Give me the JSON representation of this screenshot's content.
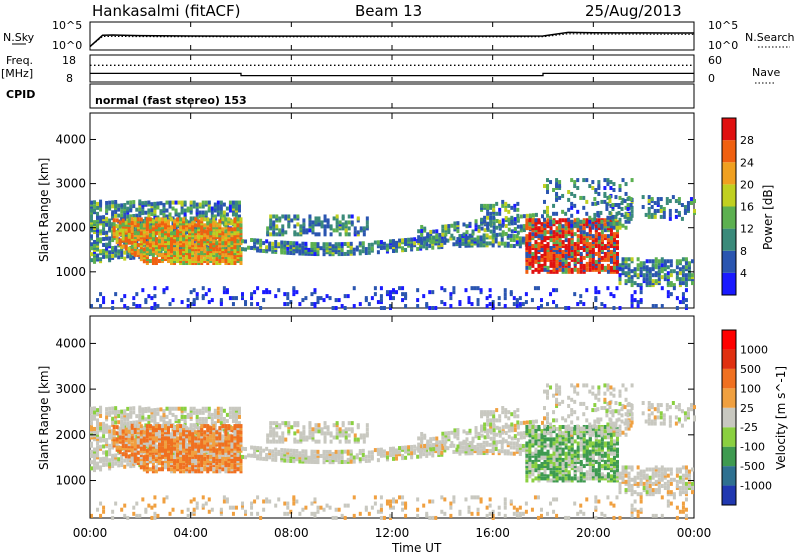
{
  "header": {
    "station": "Hankasalmi (fitACF)",
    "beam": "Beam 13",
    "date": "25/Aug/2013"
  },
  "chart_data": [
    {
      "type": "line",
      "panel": "noise",
      "left_label": "N.Sky",
      "right_label": "N.Search",
      "left_ticks": [
        "10^5",
        "10^0"
      ],
      "right_ticks": [
        "10^5",
        "10^0"
      ],
      "x": [
        0,
        0.5,
        0.9,
        1.5,
        2,
        4,
        6,
        8,
        10,
        12,
        14,
        16,
        17,
        18,
        19,
        20,
        21,
        22,
        23,
        24
      ],
      "sky_values": [
        2,
        450,
        500,
        430,
        380,
        320,
        300,
        290,
        300,
        290,
        295,
        300,
        290,
        320,
        1800,
        1500,
        1450,
        1400,
        1350,
        1300
      ],
      "search_values": [
        2,
        250,
        260,
        240,
        230,
        220,
        210,
        210,
        210,
        205,
        210,
        210,
        205,
        215,
        900,
        800,
        780,
        760,
        720,
        700
      ]
    },
    {
      "type": "line",
      "panel": "frequency_nave",
      "left_label_1": "Freq.",
      "left_label_2": "[MHz]",
      "right_label": "Nave",
      "left_ticks": [
        "18",
        "8"
      ],
      "right_ticks": [
        "60",
        "0"
      ],
      "x": [
        0,
        6,
        6,
        18,
        18,
        24
      ],
      "freq_values": [
        11,
        11,
        10,
        10,
        11,
        11
      ],
      "nave_x": [
        0,
        24
      ],
      "nave_values": [
        40,
        40
      ]
    },
    {
      "type": "table",
      "panel": "cpid",
      "label": "CPID",
      "mode_text": "normal (fast stereo) 153"
    },
    {
      "type": "heatmap",
      "panel": "power",
      "ylabel": "Slant Range [km]",
      "ylim": [
        180,
        4600
      ],
      "yticks": [
        "1000",
        "2000",
        "3000",
        "4000"
      ],
      "colorbar_label": "Power [dB]",
      "colorbar_ticks": [
        "4",
        "8",
        "12",
        "16",
        "20",
        "24",
        "28"
      ],
      "colorbar_colors": [
        "#1a1aff",
        "#2a55b0",
        "#3a8a7a",
        "#5cb050",
        "#c0d020",
        "#f0a020",
        "#f06010",
        "#e01010"
      ]
    },
    {
      "type": "heatmap",
      "panel": "velocity",
      "ylabel": "Slant Range [km]",
      "ylim": [
        180,
        4600
      ],
      "yticks": [
        "1000",
        "2000",
        "3000",
        "4000"
      ],
      "colorbar_label": "Velocity [m s^-1]",
      "colorbar_ticks": [
        "1000",
        "500",
        "100",
        "25",
        "-25",
        "-100",
        "-500",
        "-1000"
      ],
      "colorbar_colors": [
        "#2038b0",
        "#2e7090",
        "#3e9a50",
        "#8ad040",
        "#c8c8c0",
        "#f0a040",
        "#f07020",
        "#e03010",
        "#ff0000"
      ]
    }
  ],
  "x_axis": {
    "label": "Time UT",
    "ticks": [
      "00:00",
      "04:00",
      "08:00",
      "12:00",
      "16:00",
      "20:00",
      "00:00"
    ],
    "range_hours": [
      0,
      24
    ]
  }
}
